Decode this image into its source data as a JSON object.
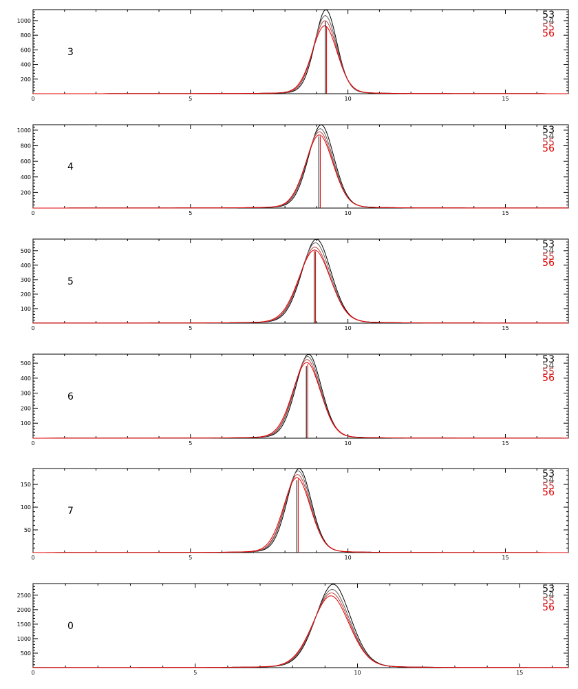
{
  "chart_data": [
    {
      "type": "line",
      "panel_label": "3",
      "xlim": [
        0,
        17
      ],
      "ylim": [
        0,
        1150
      ],
      "xticks": [
        "0",
        "5",
        "10",
        "15"
      ],
      "yticks": [
        "200",
        "400",
        "600",
        "800",
        "1000"
      ],
      "legend": [
        "53",
        "54",
        "55",
        "56"
      ],
      "center": 9.3,
      "series": [
        {
          "name": "53",
          "peak": 1150,
          "sigma": 0.36,
          "mu": 9.3,
          "color": "#000000"
        },
        {
          "name": "54",
          "peak": 1070,
          "sigma": 0.38,
          "mu": 9.28,
          "color": "#606060"
        },
        {
          "name": "55",
          "peak": 1000,
          "sigma": 0.39,
          "mu": 9.27,
          "color": "#c04040"
        },
        {
          "name": "56",
          "peak": 930,
          "sigma": 0.41,
          "mu": 9.26,
          "color": "#e00000"
        }
      ]
    },
    {
      "type": "line",
      "panel_label": "4",
      "xlim": [
        0,
        17
      ],
      "ylim": [
        0,
        1070
      ],
      "xticks": [
        "0",
        "5",
        "10",
        "15"
      ],
      "yticks": [
        "200",
        "400",
        "600",
        "800",
        "1000"
      ],
      "legend": [
        "53",
        "54",
        "55",
        "56"
      ],
      "center": 9.1,
      "series": [
        {
          "name": "53",
          "peak": 1070,
          "sigma": 0.42,
          "mu": 9.15,
          "color": "#000000"
        },
        {
          "name": "54",
          "peak": 1020,
          "sigma": 0.43,
          "mu": 9.12,
          "color": "#606060"
        },
        {
          "name": "55",
          "peak": 980,
          "sigma": 0.44,
          "mu": 9.1,
          "color": "#c04040"
        },
        {
          "name": "56",
          "peak": 940,
          "sigma": 0.45,
          "mu": 9.09,
          "color": "#e00000"
        }
      ]
    },
    {
      "type": "line",
      "panel_label": "5",
      "xlim": [
        0,
        17
      ],
      "ylim": [
        0,
        580
      ],
      "xticks": [
        "0",
        "5",
        "10",
        "15"
      ],
      "yticks": [
        "100",
        "200",
        "300",
        "400",
        "500"
      ],
      "legend": [
        "53",
        "54",
        "55",
        "56"
      ],
      "center": 8.95,
      "series": [
        {
          "name": "53",
          "peak": 580,
          "sigma": 0.48,
          "mu": 9.0,
          "color": "#000000"
        },
        {
          "name": "54",
          "peak": 555,
          "sigma": 0.49,
          "mu": 8.97,
          "color": "#606060"
        },
        {
          "name": "55",
          "peak": 525,
          "sigma": 0.5,
          "mu": 8.95,
          "color": "#c04040"
        },
        {
          "name": "56",
          "peak": 505,
          "sigma": 0.52,
          "mu": 8.94,
          "color": "#e00000"
        }
      ]
    },
    {
      "type": "line",
      "panel_label": "6",
      "xlim": [
        0,
        17
      ],
      "ylim": [
        0,
        560
      ],
      "xticks": [
        "0",
        "5",
        "10",
        "15"
      ],
      "yticks": [
        "100",
        "200",
        "300",
        "400",
        "500"
      ],
      "legend": [
        "53",
        "54",
        "55",
        "56"
      ],
      "center": 8.7,
      "series": [
        {
          "name": "53",
          "peak": 560,
          "sigma": 0.42,
          "mu": 8.75,
          "color": "#000000"
        },
        {
          "name": "54",
          "peak": 545,
          "sigma": 0.43,
          "mu": 8.72,
          "color": "#606060"
        },
        {
          "name": "55",
          "peak": 525,
          "sigma": 0.44,
          "mu": 8.7,
          "color": "#c04040"
        },
        {
          "name": "56",
          "peak": 505,
          "sigma": 0.46,
          "mu": 8.69,
          "color": "#e00000"
        }
      ]
    },
    {
      "type": "line",
      "panel_label": "7",
      "xlim": [
        0,
        17
      ],
      "ylim": [
        0,
        185
      ],
      "xticks": [
        "0",
        "5",
        "10",
        "15"
      ],
      "yticks": [
        "50",
        "100",
        "150"
      ],
      "legend": [
        "53",
        "54",
        "55",
        "56"
      ],
      "center": 8.4,
      "series": [
        {
          "name": "53",
          "peak": 185,
          "sigma": 0.4,
          "mu": 8.45,
          "color": "#000000"
        },
        {
          "name": "54",
          "peak": 180,
          "sigma": 0.41,
          "mu": 8.42,
          "color": "#606060"
        },
        {
          "name": "55",
          "peak": 172,
          "sigma": 0.42,
          "mu": 8.4,
          "color": "#c04040"
        },
        {
          "name": "56",
          "peak": 165,
          "sigma": 0.44,
          "mu": 8.38,
          "color": "#e00000"
        }
      ]
    },
    {
      "type": "line",
      "panel_label": "0",
      "xlim": [
        0,
        16.5
      ],
      "ylim": [
        0,
        2900
      ],
      "xticks": [
        "0",
        "5",
        "10",
        "15"
      ],
      "yticks": [
        "500",
        "1000",
        "1500",
        "2000",
        "2500"
      ],
      "legend": [
        "53",
        "54",
        "55",
        "56"
      ],
      "center": null,
      "series": [
        {
          "name": "53",
          "peak": 2880,
          "sigma": 0.55,
          "mu": 9.25,
          "color": "#000000"
        },
        {
          "name": "54",
          "peak": 2700,
          "sigma": 0.56,
          "mu": 9.22,
          "color": "#606060"
        },
        {
          "name": "55",
          "peak": 2580,
          "sigma": 0.57,
          "mu": 9.2,
          "color": "#c04040"
        },
        {
          "name": "56",
          "peak": 2480,
          "sigma": 0.58,
          "mu": 9.18,
          "color": "#e00000"
        }
      ]
    }
  ]
}
